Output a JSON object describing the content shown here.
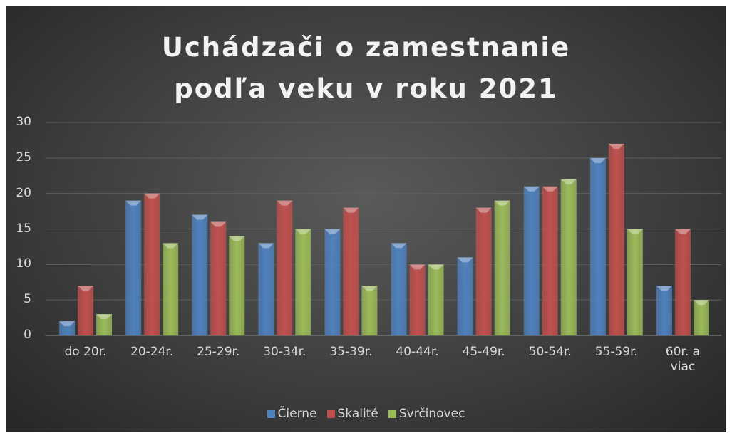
{
  "chart_data": {
    "type": "bar",
    "title": "Uchádzači o zamestnanie podľa veku v roku 2021",
    "categories": [
      "do 20r.",
      "20-24r.",
      "25-29r.",
      "30-34r.",
      "35-39r.",
      "40-44r.",
      "45-49r.",
      "50-54r.",
      "55-59r.",
      "60r. a viac"
    ],
    "series": [
      {
        "name": "Čierne",
        "color": "#4f81bd",
        "values": [
          2,
          19,
          17,
          13,
          15,
          13,
          11,
          21,
          25,
          7
        ]
      },
      {
        "name": "Skalité",
        "color": "#c0504d",
        "values": [
          7,
          20,
          16,
          19,
          18,
          10,
          18,
          21,
          27,
          15
        ]
      },
      {
        "name": "Svrčinovec",
        "color": "#9bbb59",
        "values": [
          3,
          13,
          14,
          15,
          7,
          10,
          19,
          22,
          15,
          5
        ]
      }
    ],
    "ylim": [
      0,
      30
    ],
    "yticks": [
      0,
      5,
      10,
      15,
      20,
      25,
      30
    ],
    "grid": true,
    "legend": "bottom"
  }
}
